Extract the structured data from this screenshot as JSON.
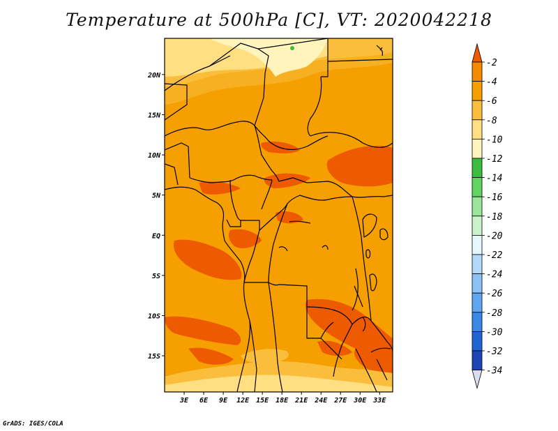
{
  "title": "Temperature at 500hPa [C], VT: 2020042218",
  "credit": "GrADS: IGES/COLA",
  "map": {
    "lon_min": 0,
    "lon_max": 35,
    "lat_min": -19.5,
    "lat_max": 24.5,
    "lon_ticks": [
      "3E",
      "6E",
      "9E",
      "12E",
      "15E",
      "18E",
      "21E",
      "24E",
      "27E",
      "30E",
      "33E"
    ],
    "lat_ticks": [
      "20N",
      "15N",
      "10N",
      "5N",
      "EQ",
      "5S",
      "10S",
      "15S"
    ],
    "base_color": "#f5a000"
  },
  "colorbar": {
    "labels": [
      "-2",
      "-4",
      "-6",
      "-8",
      "-10",
      "-12",
      "-14",
      "-16",
      "-18",
      "-20",
      "-22",
      "-24",
      "-26",
      "-28",
      "-30",
      "-32",
      "-34"
    ],
    "colors": [
      "#ee5a00",
      "#f58c00",
      "#f5a000",
      "#fbbe3c",
      "#ffdf82",
      "#fff4bc",
      "#3cbb3c",
      "#62d462",
      "#9be69b",
      "#c8f3c8",
      "#e6f7ff",
      "#b4d8fa",
      "#8cc2f5",
      "#5fa5f0",
      "#3a88e6",
      "#1e64d2",
      "#1b46b4",
      "#0a1e78",
      "#dcdcf0"
    ]
  }
}
